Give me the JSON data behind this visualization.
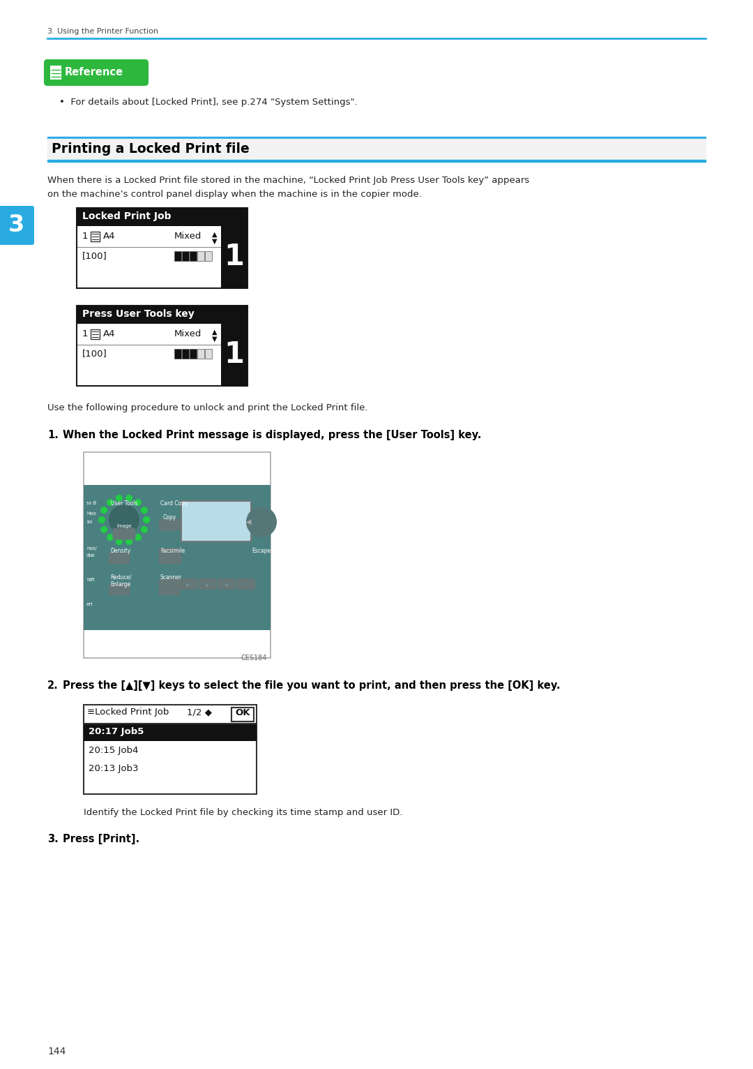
{
  "page_bg": "#ffffff",
  "page_number": "144",
  "chapter_header": "3. Using the Printer Function",
  "header_line_color": "#29abe2",
  "section_tab_color": "#29abe2",
  "section_tab_text": "3",
  "section_title": "Printing a Locked Print file",
  "reference_badge_bg": "#2db83d",
  "reference_badge_text": "Reference",
  "reference_text": "•  For details about [Locked Print], see p.274 \"System Settings\".",
  "body_text_1a": "When there is a Locked Print file stored in the machine, “Locked Print Job Press User Tools key” appears",
  "body_text_1b": "on the machine’s control panel display when the machine is in the copier mode.",
  "display_box1_title": "Locked Print Job",
  "display_box2_title": "Press User Tools key",
  "procedure_text": "Use the following procedure to unlock and print the Locked Print file.",
  "step1_text": "When the Locked Print message is displayed, press the [User Tools] key.",
  "step2_text": "Press the [▲][▼] keys to select the file you want to print, and then press the [OK] key.",
  "lcd_header": "≡Locked Print Job",
  "lcd_page": "1/2 ◆",
  "lcd_ok": "OK",
  "lcd_row1": "20:17 Job5",
  "lcd_row2": "20:15 Job4",
  "lcd_row3": "20:13 Job3",
  "step2_sub": "Identify the Locked Print file by checking its time stamp and user ID.",
  "step3_text": "Press [Print].",
  "caption": "CES184",
  "printer_panel_color": "#4a8080",
  "printer_screen_color": "#b8dde8",
  "green_dash_color": "#22cc44"
}
